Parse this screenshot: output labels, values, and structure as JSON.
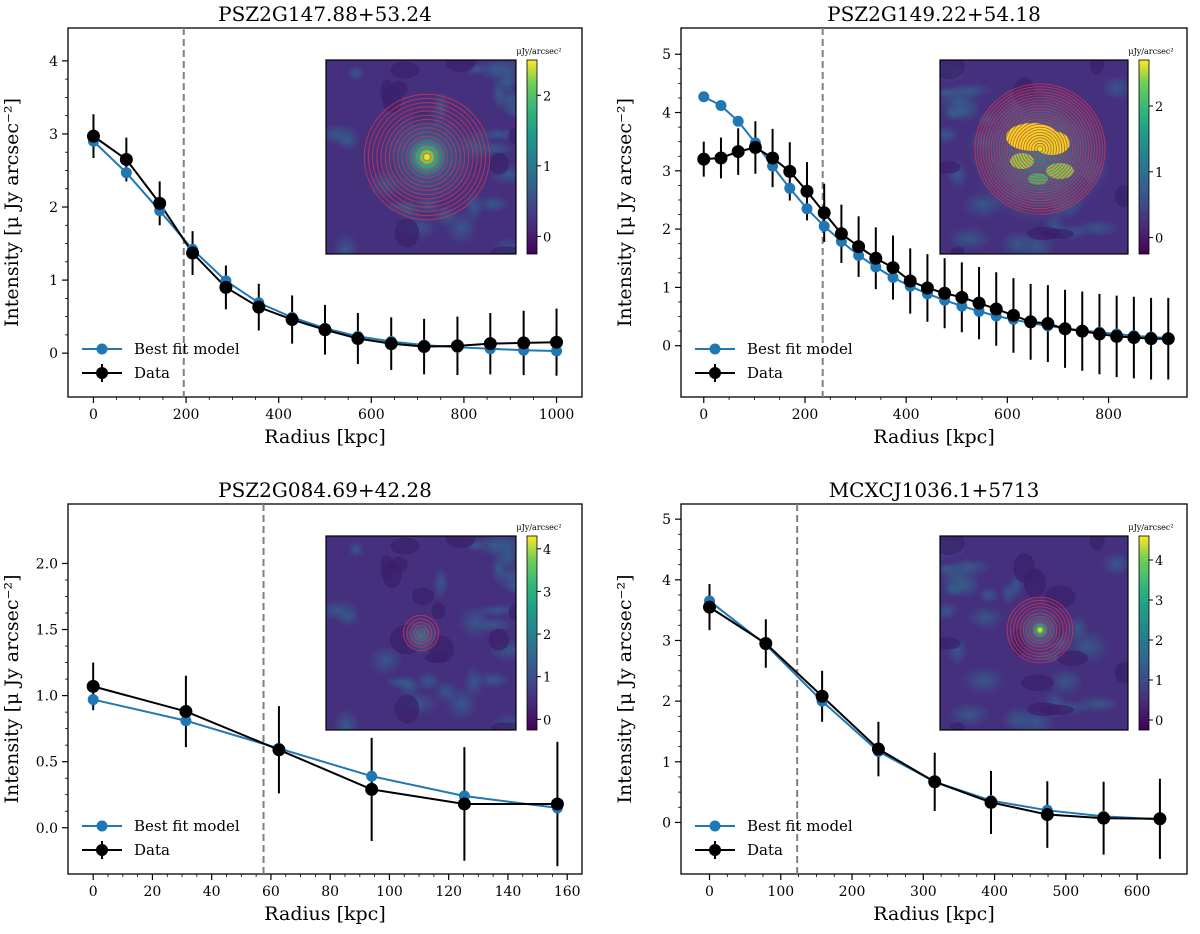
{
  "colors": {
    "model": "#1f77b4",
    "data": "#000000",
    "vline": "#808080",
    "rings": "#e03050"
  },
  "chart_data": [
    {
      "type": "line",
      "title": "PSZ2G147.88+53.24",
      "xlabel": "Radius [kpc]",
      "ylabel": "Intensity [μ Jy arcsec⁻²]",
      "xlim": [
        -55,
        1055
      ],
      "ylim": [
        -0.6,
        4.45
      ],
      "xticks": [
        0,
        200,
        400,
        600,
        800,
        1000
      ],
      "yticks": [
        0,
        1,
        2,
        3,
        4
      ],
      "vline": 195,
      "legend": [
        "Best fit model",
        "Data"
      ],
      "legend_position": "lower-left",
      "inset": {
        "colorbar_label": "μJy/arcsec²",
        "colorbar_max": 2.5,
        "colorbar_ticks": [
          0,
          1,
          2
        ],
        "map": "compact",
        "rings": 15
      },
      "series": [
        {
          "name": "Best fit model",
          "x": [
            0,
            71,
            143,
            214,
            286,
            357,
            429,
            500,
            571,
            643,
            714,
            786,
            857,
            929,
            1000
          ],
          "values": [
            2.9,
            2.47,
            1.95,
            1.42,
            0.99,
            0.69,
            0.49,
            0.34,
            0.23,
            0.16,
            0.11,
            0.08,
            0.06,
            0.04,
            0.03
          ]
        },
        {
          "name": "Data",
          "x": [
            0,
            71,
            143,
            214,
            286,
            357,
            429,
            500,
            571,
            643,
            714,
            786,
            857,
            929,
            1000
          ],
          "values": [
            2.97,
            2.65,
            2.05,
            1.37,
            0.9,
            0.63,
            0.46,
            0.32,
            0.2,
            0.13,
            0.09,
            0.1,
            0.13,
            0.14,
            0.15
          ],
          "errors": [
            0.3,
            0.3,
            0.3,
            0.3,
            0.3,
            0.32,
            0.33,
            0.34,
            0.35,
            0.36,
            0.38,
            0.4,
            0.42,
            0.44,
            0.46
          ]
        }
      ]
    },
    {
      "type": "line",
      "title": "PSZ2G149.22+54.18",
      "xlabel": "Radius [kpc]",
      "ylabel": "Intensity [μ Jy arcsec⁻²]",
      "xlim": [
        -45,
        955
      ],
      "ylim": [
        -0.88,
        5.45
      ],
      "xticks": [
        0,
        200,
        400,
        600,
        800
      ],
      "yticks": [
        0,
        1,
        2,
        3,
        4,
        5
      ],
      "vline": 235,
      "legend": [
        "Best fit model",
        "Data"
      ],
      "legend_position": "lower-left",
      "inset": {
        "colorbar_label": "μJy/arcsec²",
        "colorbar_max": 2.7,
        "colorbar_ticks": [
          0,
          1,
          2
        ],
        "map": "extended",
        "rings": 24
      },
      "series": [
        {
          "name": "Best fit model",
          "x": [
            0,
            34,
            68,
            102,
            136,
            170,
            204,
            238,
            272,
            306,
            340,
            374,
            408,
            442,
            476,
            510,
            544,
            578,
            612,
            646,
            680,
            714,
            748,
            782,
            816,
            850,
            884,
            918
          ],
          "values": [
            4.27,
            4.12,
            3.85,
            3.48,
            3.08,
            2.7,
            2.35,
            2.05,
            1.79,
            1.55,
            1.35,
            1.17,
            1.02,
            0.89,
            0.78,
            0.68,
            0.59,
            0.51,
            0.45,
            0.39,
            0.34,
            0.3,
            0.26,
            0.23,
            0.2,
            0.17,
            0.15,
            0.13
          ]
        },
        {
          "name": "Data",
          "x": [
            0,
            34,
            68,
            102,
            136,
            170,
            204,
            238,
            272,
            306,
            340,
            374,
            408,
            442,
            476,
            510,
            544,
            578,
            612,
            646,
            680,
            714,
            748,
            782,
            816,
            850,
            884,
            918
          ],
          "values": [
            3.2,
            3.22,
            3.33,
            3.4,
            3.22,
            2.99,
            2.65,
            2.28,
            1.92,
            1.7,
            1.5,
            1.34,
            1.11,
            0.99,
            0.9,
            0.83,
            0.73,
            0.63,
            0.52,
            0.41,
            0.38,
            0.29,
            0.25,
            0.2,
            0.16,
            0.14,
            0.12,
            0.12
          ],
          "errors": [
            0.3,
            0.35,
            0.4,
            0.45,
            0.5,
            0.5,
            0.5,
            0.5,
            0.5,
            0.52,
            0.53,
            0.55,
            0.56,
            0.58,
            0.6,
            0.6,
            0.62,
            0.63,
            0.64,
            0.65,
            0.66,
            0.67,
            0.68,
            0.69,
            0.7,
            0.7,
            0.7,
            0.7
          ]
        }
      ]
    },
    {
      "type": "line",
      "title": "PSZ2G084.69+42.28",
      "xlabel": "Radius [kpc]",
      "ylabel": "Intensity [μ Jy arcsec⁻²]",
      "xlim": [
        -8.5,
        165
      ],
      "ylim": [
        -0.35,
        2.45
      ],
      "xticks": [
        0,
        20,
        40,
        60,
        80,
        100,
        120,
        140,
        160
      ],
      "yticks": [
        0.0,
        0.5,
        1.0,
        1.5,
        2.0
      ],
      "ytick_decimals": 1,
      "vline": 57.5,
      "legend": [
        "Best fit model",
        "Data"
      ],
      "legend_position": "lower-left",
      "inset": {
        "colorbar_label": "μJy/arcsec²",
        "colorbar_max": 4.3,
        "colorbar_ticks": [
          0,
          1,
          2,
          3,
          4
        ],
        "map": "faint",
        "rings": 5
      },
      "series": [
        {
          "name": "Best fit model",
          "x": [
            0,
            31.3,
            62.7,
            94,
            125.3,
            156.7
          ],
          "values": [
            0.97,
            0.81,
            0.6,
            0.39,
            0.24,
            0.15
          ]
        },
        {
          "name": "Data",
          "x": [
            0,
            31.3,
            62.7,
            94,
            125.3,
            156.7
          ],
          "values": [
            1.07,
            0.88,
            0.59,
            0.29,
            0.18,
            0.18
          ],
          "errors": [
            0.18,
            0.27,
            0.33,
            0.39,
            0.43,
            0.47
          ]
        }
      ]
    },
    {
      "type": "line",
      "title": "MCXCJ1036.1+5713",
      "xlabel": "Radius [kpc]",
      "ylabel": "Intensity [μ Jy arcsec⁻²]",
      "xlim": [
        -40,
        670
      ],
      "ylim": [
        -0.85,
        5.25
      ],
      "xticks": [
        0,
        100,
        200,
        300,
        400,
        500,
        600
      ],
      "yticks": [
        0,
        1,
        2,
        3,
        4,
        5
      ],
      "vline": 123,
      "legend": [
        "Best fit model",
        "Data"
      ],
      "legend_position": "lower-left",
      "inset": {
        "colorbar_label": "μJy/arcsec²",
        "colorbar_max": 4.6,
        "colorbar_ticks": [
          0,
          1,
          2,
          3,
          4
        ],
        "map": "compact-small",
        "rings": 10
      },
      "series": [
        {
          "name": "Best fit model",
          "x": [
            0,
            79,
            158,
            237,
            316,
            395,
            474,
            553,
            632
          ],
          "values": [
            3.65,
            2.93,
            2.0,
            1.17,
            0.67,
            0.36,
            0.2,
            0.1,
            0.05
          ]
        },
        {
          "name": "Data",
          "x": [
            0,
            79,
            158,
            237,
            316,
            395,
            474,
            553,
            632
          ],
          "values": [
            3.55,
            2.95,
            2.08,
            1.21,
            0.67,
            0.33,
            0.13,
            0.07,
            0.06
          ],
          "errors": [
            0.38,
            0.4,
            0.42,
            0.45,
            0.48,
            0.52,
            0.55,
            0.6,
            0.66
          ]
        }
      ]
    }
  ]
}
